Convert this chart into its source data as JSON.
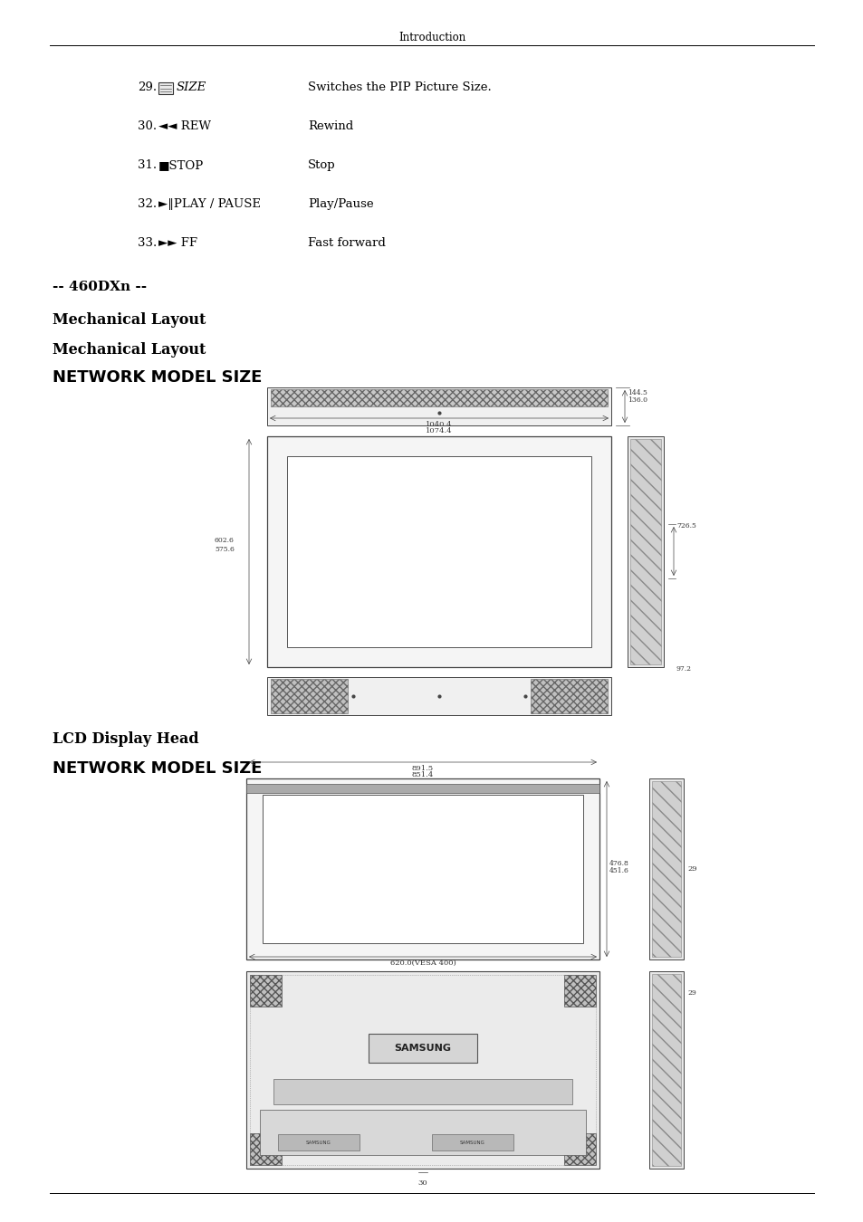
{
  "page_title": "Introduction",
  "bg_color": "#ffffff",
  "items": [
    {
      "num": "29.",
      "desc": "Switches the PIP Picture Size."
    },
    {
      "num": "30.",
      "label": "◄◄ REW",
      "desc": "Rewind"
    },
    {
      "num": "31.",
      "label": "■STOP",
      "desc": "Stop"
    },
    {
      "num": "32.",
      "label": "►‖PLAY / PAUSE",
      "desc": "Play/Pause"
    },
    {
      "num": "33.",
      "label": "►► FF",
      "desc": "Fast forward"
    }
  ],
  "s1": "-- 460DXn --",
  "s2": "Mechanical Layout",
  "s3": "Mechanical Layout",
  "s4": "NETWORK MODEL SIZE",
  "s5": "LCD Display Head",
  "s6": "NETWORK MODEL SIZE",
  "dim1_w1": "1040.4",
  "dim1_w2": "1074.4",
  "dim1_h1": "602.6",
  "dim1_h2": "575.6",
  "dim1_side1": "726.5",
  "dim1_side2": "97.2",
  "dim1_top1": "144.5",
  "dim1_top2": "136.0",
  "dim2_w1": "891.5",
  "dim2_w2": "851.4",
  "dim2_h1": "476.8",
  "dim2_h2": "451.6",
  "dim2_back_w": "620.0(VESA 400)",
  "dim2_side": "29"
}
